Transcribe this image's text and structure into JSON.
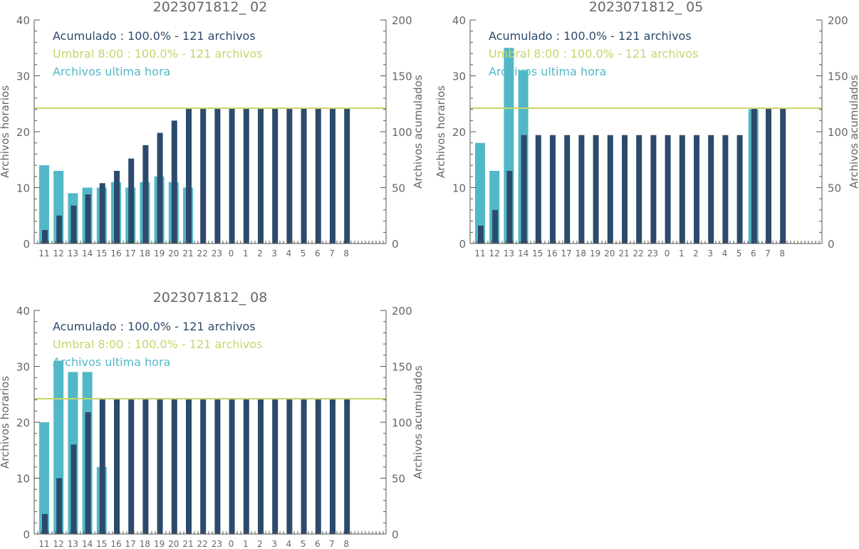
{
  "colors": {
    "hourly": "#52b8c7",
    "cumulative": "#2c4a6b",
    "threshold": "#c8d46a",
    "axis": "#555555",
    "text": "#666666"
  },
  "chart_data": [
    {
      "type": "bar",
      "title": "2023071812_ 02",
      "ylabel_left": "Archivos horarios",
      "ylabel_right": "Archivos acumulados",
      "categories": [
        "11",
        "12",
        "13",
        "14",
        "15",
        "16",
        "17",
        "18",
        "19",
        "20",
        "21",
        "22",
        "23",
        "0",
        "1",
        "2",
        "3",
        "4",
        "5",
        "6",
        "7",
        "8"
      ],
      "ylim_left": [
        0,
        40
      ],
      "ylim_right": [
        0,
        200
      ],
      "yticks_left": [
        0,
        10,
        20,
        30,
        40
      ],
      "yticks_right": [
        0,
        50,
        100,
        150,
        200
      ],
      "threshold": 121,
      "legend": [
        {
          "text": "Acumulado : 100.0% - 121 archivos",
          "series": "cumulative"
        },
        {
          "text": "Umbral 8:00 : 100.0% - 121 archivos",
          "series": "threshold"
        },
        {
          "text": "Archivos ultima hora",
          "series": "hourly"
        }
      ],
      "series": [
        {
          "name": "Archivos ultima hora",
          "axis": "left",
          "values": [
            14,
            13,
            9,
            10,
            10,
            11,
            10,
            11,
            12,
            11,
            10,
            0,
            0,
            0,
            0,
            0,
            0,
            0,
            0,
            0,
            0,
            0
          ]
        },
        {
          "name": "Acumulado",
          "axis": "right",
          "values": [
            12,
            25,
            34,
            44,
            54,
            65,
            76,
            88,
            99,
            110,
            121,
            121,
            121,
            121,
            121,
            121,
            121,
            121,
            121,
            121,
            121,
            121
          ]
        }
      ]
    },
    {
      "type": "bar",
      "title": "2023071812_ 05",
      "ylabel_left": "Archivos horarios",
      "ylabel_right": "Archivos acumulados",
      "categories": [
        "11",
        "12",
        "13",
        "14",
        "15",
        "16",
        "17",
        "18",
        "19",
        "20",
        "21",
        "22",
        "23",
        "0",
        "1",
        "2",
        "3",
        "4",
        "5",
        "6",
        "7",
        "8"
      ],
      "ylim_left": [
        0,
        40
      ],
      "ylim_right": [
        0,
        200
      ],
      "yticks_left": [
        0,
        10,
        20,
        30,
        40
      ],
      "yticks_right": [
        0,
        50,
        100,
        150,
        200
      ],
      "threshold": 121,
      "legend": [
        {
          "text": "Acumulado : 100.0% - 121 archivos",
          "series": "cumulative"
        },
        {
          "text": "Umbral 8:00 : 100.0% - 121 archivos",
          "series": "threshold"
        },
        {
          "text": "Archivos ultima hora",
          "series": "hourly"
        }
      ],
      "series": [
        {
          "name": "Archivos ultima hora",
          "axis": "left",
          "values": [
            18,
            13,
            35,
            31,
            0,
            0,
            0,
            0,
            0,
            0,
            0,
            0,
            0,
            0,
            0,
            0,
            0,
            0,
            0,
            24,
            0,
            0
          ]
        },
        {
          "name": "Acumulado",
          "axis": "right",
          "values": [
            16,
            30,
            65,
            97,
            97,
            97,
            97,
            97,
            97,
            97,
            97,
            97,
            97,
            97,
            97,
            97,
            97,
            97,
            97,
            121,
            121,
            121
          ]
        }
      ]
    },
    {
      "type": "bar",
      "title": "2023071812_ 08",
      "ylabel_left": "Archivos horarios",
      "ylabel_right": "Archivos acumulados",
      "categories": [
        "11",
        "12",
        "13",
        "14",
        "15",
        "16",
        "17",
        "18",
        "19",
        "20",
        "21",
        "22",
        "23",
        "0",
        "1",
        "2",
        "3",
        "4",
        "5",
        "6",
        "7",
        "8"
      ],
      "ylim_left": [
        0,
        40
      ],
      "ylim_right": [
        0,
        200
      ],
      "yticks_left": [
        0,
        10,
        20,
        30,
        40
      ],
      "yticks_right": [
        0,
        50,
        100,
        150,
        200
      ],
      "threshold": 121,
      "legend": [
        {
          "text": "Acumulado : 100.0% - 121 archivos",
          "series": "cumulative"
        },
        {
          "text": "Umbral 8:00 : 100.0% - 121 archivos",
          "series": "threshold"
        },
        {
          "text": "Archivos ultima hora",
          "series": "hourly"
        }
      ],
      "series": [
        {
          "name": "Archivos ultima hora",
          "axis": "left",
          "values": [
            20,
            31,
            29,
            29,
            12,
            0,
            0,
            0,
            0,
            0,
            0,
            0,
            0,
            0,
            0,
            0,
            0,
            0,
            0,
            0,
            0,
            0
          ]
        },
        {
          "name": "Acumulado",
          "axis": "right",
          "values": [
            18,
            50,
            80,
            109,
            121,
            121,
            121,
            121,
            121,
            121,
            121,
            121,
            121,
            121,
            121,
            121,
            121,
            121,
            121,
            121,
            121,
            121
          ]
        }
      ]
    }
  ]
}
